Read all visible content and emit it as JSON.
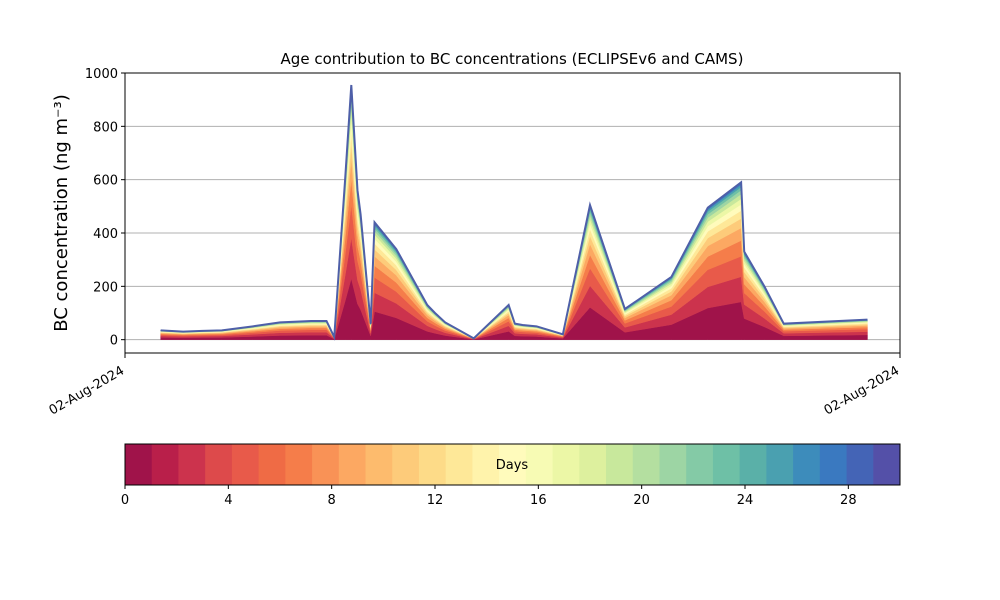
{
  "chart_data": [
    {
      "type": "area",
      "title": "Age contribution to BC concentrations (ECLIPSEv6 and CAMS)",
      "ylabel": "BC concentration (ng m⁻³)",
      "xlabel": "",
      "x_tick_labels": [
        "02-Aug-2024",
        "02-Aug-2024"
      ],
      "ylim": [
        -50,
        1000
      ],
      "yticks": [
        0,
        200,
        400,
        600,
        800,
        1000
      ],
      "grid": "horizontal",
      "x_range": [
        0,
        100
      ],
      "x": [
        4.6,
        7.5,
        10,
        12.5,
        16.5,
        20,
        24,
        26,
        27,
        28.4,
        29.2,
        30,
        30.4,
        31.7,
        32.2,
        35,
        39,
        40,
        41.3,
        45,
        49.5,
        50.3,
        51.3,
        53.1,
        56.5,
        60,
        64.5,
        70.5,
        75.2,
        79.5,
        79.9,
        82.5,
        85,
        95.8
      ],
      "total": [
        35,
        30,
        33,
        35,
        50,
        65,
        70,
        70,
        10,
        600,
        955,
        560,
        470,
        60,
        440,
        340,
        130,
        100,
        65,
        5,
        130,
        60,
        55,
        50,
        20,
        505,
        115,
        235,
        495,
        590,
        330,
        200,
        60,
        75
      ],
      "age_fractions": [
        0.28,
        0.16,
        0.13,
        0.1,
        0.08,
        0.06,
        0.05,
        0.04,
        0.035,
        0.03,
        0.025,
        0.02,
        0.015,
        0.01,
        0.005
      ],
      "colorbar": {
        "label": "Days",
        "range": [
          0,
          30
        ],
        "ticks": [
          0,
          4,
          8,
          12,
          16,
          20,
          24,
          28
        ],
        "colors": [
          "#a0134a",
          "#b91f4a",
          "#cc334d",
          "#dd4a4b",
          "#e85a4a",
          "#ef6b45",
          "#f57d4a",
          "#f99256",
          "#fca862",
          "#fdbb6d",
          "#fdcb7a",
          "#fddb88",
          "#fee898",
          "#fff3ab",
          "#fffbbc",
          "#f7fbb4",
          "#ecf7a6",
          "#ddf09e",
          "#c8e89c",
          "#b4dfa0",
          "#9dd5a4",
          "#84caa6",
          "#6ec0a6",
          "#5ab0a8",
          "#4aa0b0",
          "#3d8cbb",
          "#3a79c0",
          "#4464b6",
          "#5450a8"
        ]
      }
    }
  ]
}
